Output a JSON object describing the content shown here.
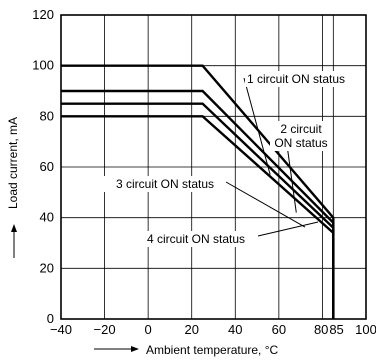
{
  "chart_data": {
    "type": "line",
    "xlabel": "Ambient temperature, °C",
    "ylabel": "Load current, mA",
    "xlim": [
      -40,
      100
    ],
    "ylim": [
      0,
      120
    ],
    "x_ticks": [
      -40,
      -20,
      0,
      20,
      40,
      60,
      80,
      85,
      100
    ],
    "x_tick_labels": [
      "−40",
      "−20",
      "0",
      "20",
      "40",
      "60",
      "80",
      "85",
      "100"
    ],
    "y_ticks": [
      0,
      20,
      40,
      60,
      80,
      100,
      120
    ],
    "y_tick_labels": [
      "0",
      "20",
      "40",
      "60",
      "80",
      "100",
      "120"
    ],
    "grid": true,
    "series": [
      {
        "name": "1 circuit ON status",
        "x": [
          -40,
          25,
          85,
          85
        ],
        "y": [
          100,
          100,
          40,
          0
        ]
      },
      {
        "name": "2 circuit ON status",
        "x": [
          -40,
          25,
          85,
          85
        ],
        "y": [
          90,
          90,
          38,
          0
        ]
      },
      {
        "name": "3 circuit ON status",
        "x": [
          -40,
          25,
          85,
          85
        ],
        "y": [
          85,
          85,
          36,
          0
        ]
      },
      {
        "name": "4 circuit ON status",
        "x": [
          -40,
          25,
          85,
          85
        ],
        "y": [
          80,
          80,
          34,
          0
        ]
      }
    ],
    "annotations": [
      {
        "series": 0,
        "lines": [
          "1 circuit ON status"
        ]
      },
      {
        "series": 1,
        "lines": [
          "2 circuit",
          "ON status"
        ]
      },
      {
        "series": 2,
        "lines": [
          "3 circuit ON status"
        ]
      },
      {
        "series": 3,
        "lines": [
          "4 circuit ON status"
        ]
      }
    ]
  }
}
